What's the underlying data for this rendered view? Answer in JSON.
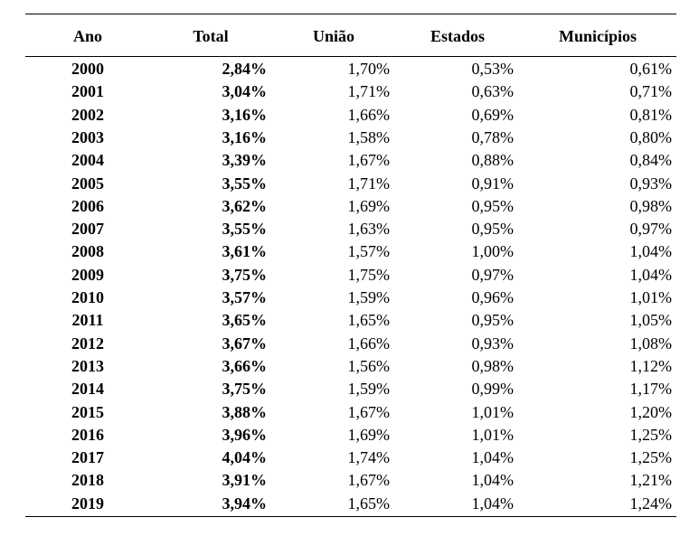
{
  "table": {
    "header": [
      "Ano",
      "Total",
      "União",
      "Estados",
      "Municípios"
    ],
    "rows": [
      [
        "2000",
        "2,84%",
        "1,70%",
        "0,53%",
        "0,61%"
      ],
      [
        "2001",
        "3,04%",
        "1,71%",
        "0,63%",
        "0,71%"
      ],
      [
        "2002",
        "3,16%",
        "1,66%",
        "0,69%",
        "0,81%"
      ],
      [
        "2003",
        "3,16%",
        "1,58%",
        "0,78%",
        "0,80%"
      ],
      [
        "2004",
        "3,39%",
        "1,67%",
        "0,88%",
        "0,84%"
      ],
      [
        "2005",
        "3,55%",
        "1,71%",
        "0,91%",
        "0,93%"
      ],
      [
        "2006",
        "3,62%",
        "1,69%",
        "0,95%",
        "0,98%"
      ],
      [
        "2007",
        "3,55%",
        "1,63%",
        "0,95%",
        "0,97%"
      ],
      [
        "2008",
        "3,61%",
        "1,57%",
        "1,00%",
        "1,04%"
      ],
      [
        "2009",
        "3,75%",
        "1,75%",
        "0,97%",
        "1,04%"
      ],
      [
        "2010",
        "3,57%",
        "1,59%",
        "0,96%",
        "1,01%"
      ],
      [
        "2011",
        "3,65%",
        "1,65%",
        "0,95%",
        "1,05%"
      ],
      [
        "2012",
        "3,67%",
        "1,66%",
        "0,93%",
        "1,08%"
      ],
      [
        "2013",
        "3,66%",
        "1,56%",
        "0,98%",
        "1,12%"
      ],
      [
        "2014",
        "3,75%",
        "1,59%",
        "0,99%",
        "1,17%"
      ],
      [
        "2015",
        "3,88%",
        "1,67%",
        "1,01%",
        "1,20%"
      ],
      [
        "2016",
        "3,96%",
        "1,69%",
        "1,01%",
        "1,25%"
      ],
      [
        "2017",
        "4,04%",
        "1,74%",
        "1,04%",
        "1,25%"
      ],
      [
        "2018",
        "3,91%",
        "1,67%",
        "1,04%",
        "1,21%"
      ],
      [
        "2019",
        "3,94%",
        "1,65%",
        "1,04%",
        "1,24%"
      ]
    ]
  }
}
